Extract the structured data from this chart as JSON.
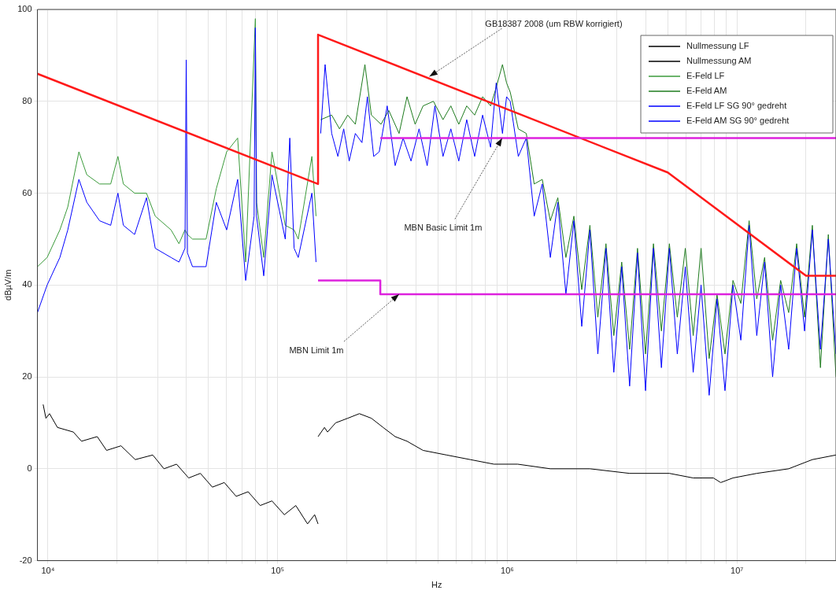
{
  "chart_data": {
    "type": "line",
    "xlabel": "Hz",
    "ylabel": "dBµV/m",
    "log": "x",
    "grid": true,
    "legend": "top right",
    "marker": "none",
    "xlim": [
      9000,
      27000000
    ],
    "ylim": [
      -20,
      100
    ],
    "xticks": [
      {
        "value": 10000,
        "label": "10⁴"
      },
      {
        "value": 20000,
        "label": null
      },
      {
        "value": 30000,
        "label": null
      },
      {
        "value": 40000,
        "label": null
      },
      {
        "value": 50000,
        "label": null
      },
      {
        "value": 60000,
        "label": null
      },
      {
        "value": 70000,
        "label": null
      },
      {
        "value": 80000,
        "label": null
      },
      {
        "value": 90000,
        "label": null
      },
      {
        "value": 100000,
        "label": "10⁵"
      },
      {
        "value": 200000,
        "label": null
      },
      {
        "value": 300000,
        "label": null
      },
      {
        "value": 400000,
        "label": null
      },
      {
        "value": 500000,
        "label": null
      },
      {
        "value": 600000,
        "label": null
      },
      {
        "value": 700000,
        "label": null
      },
      {
        "value": 800000,
        "label": null
      },
      {
        "value": 900000,
        "label": null
      },
      {
        "value": 1000000,
        "label": "10⁶"
      },
      {
        "value": 2000000,
        "label": null
      },
      {
        "value": 3000000,
        "label": null
      },
      {
        "value": 4000000,
        "label": null
      },
      {
        "value": 5000000,
        "label": null
      },
      {
        "value": 6000000,
        "label": null
      },
      {
        "value": 7000000,
        "label": null
      },
      {
        "value": 8000000,
        "label": null
      },
      {
        "value": 9000000,
        "label": null
      },
      {
        "value": 10000000,
        "label": "10⁷"
      },
      {
        "value": 20000000,
        "label": null
      }
    ],
    "yticks": [
      -20,
      0,
      20,
      40,
      60,
      80,
      100
    ],
    "series": [
      {
        "name": "Nullmessung LF",
        "color": "#000000",
        "x": [
          9530,
          9800,
          10160,
          11000,
          12900,
          14000,
          16390,
          18000,
          20800,
          24000,
          28600,
          32000,
          36300,
          41000,
          46100,
          52000,
          58600,
          66000,
          74400,
          84000,
          94500,
          107000,
          120000,
          135000,
          145000,
          150000
        ],
        "values": [
          14,
          11,
          12,
          9,
          8,
          6,
          7,
          4,
          5,
          2,
          3,
          0,
          1,
          -2,
          -1,
          -4,
          -3,
          -6,
          -5,
          -8,
          -7,
          -10,
          -8,
          -12,
          -10,
          -12
        ]
      },
      {
        "name": "Nullmessung AM",
        "color": "#000000",
        "x": [
          150000,
          160000,
          165000,
          179000,
          202000,
          227000,
          256000,
          288000,
          325000,
          366000,
          430000,
          544000,
          690000,
          875000,
          1110000,
          1540000,
          2290000,
          3410000,
          5080000,
          6450000,
          7900000,
          8500000,
          9610000,
          12200000,
          16800000,
          21300000,
          27000000
        ],
        "values": [
          7,
          9,
          8,
          10,
          11,
          12,
          11,
          9,
          7,
          6,
          4,
          3,
          2,
          1,
          1,
          0,
          0,
          -1,
          -1,
          -2,
          -2,
          -3,
          -2,
          -1,
          0,
          2,
          3
        ]
      },
      {
        "name": "E-Feld LF",
        "color": "#3a9a3a",
        "x": [
          9000,
          9920,
          11270,
          12200,
          13640,
          14770,
          16780,
          18760,
          20170,
          21300,
          23840,
          26860,
          29320,
          34360,
          37200,
          39500,
          40000,
          40500,
          42600,
          48800,
          54100,
          60000,
          67000,
          72600,
          79000,
          80000,
          81000,
          87000,
          94500,
          108000,
          113000,
          118000,
          123000,
          141000,
          147000
        ],
        "values": [
          44,
          46,
          52,
          57,
          69,
          64,
          62,
          62,
          68,
          62,
          60,
          60,
          55,
          52,
          49,
          52,
          null,
          51,
          50,
          50,
          61,
          69,
          72,
          45,
          null,
          98,
          58,
          46,
          69,
          53,
          null,
          52,
          50,
          68,
          55
        ]
      },
      {
        "name": "E-Feld AM",
        "color": "#1e7b1e",
        "x": [
          154000,
          161000,
          172000,
          186000,
          202000,
          218000,
          240000,
          256000,
          282000,
          305000,
          338000,
          366000,
          397000,
          430000,
          477000,
          525000,
          568000,
          615000,
          666000,
          721000,
          781000,
          846000,
          895000,
          953000,
          993000,
          1030000,
          1117000,
          1210000,
          1310000,
          1420000,
          1540000,
          1660000,
          1800000,
          1950000,
          2110000,
          2290000,
          2480000,
          2690000,
          2910000,
          3150000,
          3410000,
          3690000,
          4000000,
          4330000,
          4690000,
          5080000,
          5500000,
          5960000,
          6450000,
          6980000,
          7570000,
          8190000,
          8870000,
          9610000,
          10400000,
          11300000,
          12200000,
          13200000,
          14300000,
          15500000,
          16800000,
          18200000,
          19700000,
          21300000,
          23100000,
          25000000,
          27000000
        ],
        "values": [
          76,
          null,
          77,
          74,
          77,
          75,
          88,
          77,
          75,
          78,
          73,
          81,
          75,
          79,
          80,
          76,
          79,
          75,
          79,
          77,
          81,
          79,
          83,
          88,
          84,
          82,
          74,
          73,
          62,
          63,
          54,
          59,
          46,
          55,
          39,
          53,
          33,
          49,
          29,
          45,
          26,
          48,
          25,
          49,
          30,
          49,
          33,
          48,
          29,
          48,
          24,
          38,
          25,
          41,
          36,
          54,
          37,
          46,
          28,
          41,
          34,
          49,
          33,
          53,
          22,
          51,
          20
        ]
      },
      {
        "name": "E-Feld LF SG 90° gedreht",
        "color": "#0000ff",
        "x": [
          9000,
          9920,
          11270,
          12200,
          13640,
          14770,
          16780,
          18760,
          20170,
          21300,
          23840,
          26860,
          29320,
          34360,
          37200,
          39500,
          40000,
          40500,
          42600,
          48800,
          54100,
          60000,
          67000,
          72600,
          79000,
          80000,
          81000,
          87000,
          94500,
          108000,
          113000,
          118000,
          123000,
          141000,
          147000
        ],
        "values": [
          34,
          40,
          46,
          52,
          63,
          58,
          54,
          53,
          60,
          53,
          51,
          59,
          48,
          46,
          45,
          48,
          89,
          47,
          44,
          44,
          58,
          52,
          63,
          41,
          55,
          96,
          55,
          42,
          64,
          50,
          72,
          48,
          46,
          60,
          45
        ]
      },
      {
        "name": "E-Feld AM SG 90° gedreht",
        "color": "#0000ff",
        "x": [
          154000,
          161000,
          172000,
          183000,
          194000,
          205000,
          218000,
          233000,
          246000,
          262000,
          277000,
          300000,
          325000,
          352000,
          381000,
          413000,
          448000,
          484000,
          525000,
          568000,
          615000,
          666000,
          721000,
          781000,
          846000,
          895000,
          953000,
          993000,
          1030000,
          1117000,
          1210000,
          1310000,
          1420000,
          1540000,
          1660000,
          1800000,
          1950000,
          2110000,
          2290000,
          2480000,
          2690000,
          2910000,
          3150000,
          3410000,
          3690000,
          4000000,
          4330000,
          4690000,
          5080000,
          5500000,
          5960000,
          6450000,
          6980000,
          7570000,
          8190000,
          8870000,
          9610000,
          10400000,
          11300000,
          12200000,
          13200000,
          14300000,
          15500000,
          16800000,
          18200000,
          19700000,
          21300000,
          23100000,
          25000000,
          27000000
        ],
        "values": [
          73,
          88,
          73,
          68,
          74,
          67,
          73,
          71,
          81,
          68,
          69,
          79,
          66,
          72,
          67,
          74,
          66,
          79,
          68,
          74,
          67,
          76,
          68,
          77,
          70,
          84,
          73,
          81,
          80,
          68,
          72,
          55,
          62,
          46,
          58,
          38,
          54,
          31,
          52,
          25,
          48,
          21,
          44,
          18,
          47,
          17,
          48,
          22,
          48,
          25,
          44,
          21,
          40,
          16,
          37,
          17,
          40,
          28,
          53,
          29,
          45,
          20,
          40,
          26,
          48,
          30,
          52,
          26,
          50,
          25
        ]
      },
      {
        "color": "#ff1a1a",
        "x": [
          9000,
          150000,
          150000,
          5000000,
          20000000,
          27000000
        ],
        "values": [
          86,
          62,
          94.5,
          64.5,
          42,
          42
        ]
      },
      {
        "color": "#dd22dd",
        "x": [
          280000,
          27000000
        ],
        "values": [
          72,
          72
        ]
      },
      {
        "color": "#dd22dd",
        "x": [
          150000,
          280000,
          280000,
          27000000
        ],
        "values": [
          41,
          41,
          38,
          38
        ]
      }
    ],
    "annotations": [
      {
        "text": "GB18387 2008 (um RBW korrigiert)",
        "x": 458000,
        "y": 85.4
      },
      {
        "text": "MBN Basic Limit 1m",
        "x": 950000,
        "y": 72
      },
      {
        "text": "MBN Limit 1m",
        "x": 338000,
        "y": 38
      }
    ]
  }
}
